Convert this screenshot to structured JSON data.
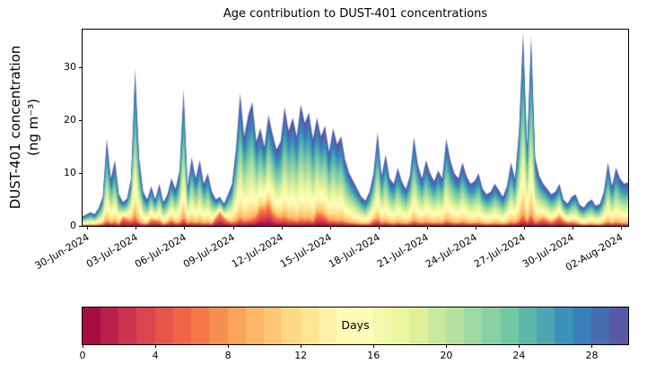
{
  "figure": {
    "title": "Age contribution to DUST-401 concentrations",
    "ylabel_line1": "DUST-401 concentration",
    "ylabel_line2": "(ng m⁻³)"
  },
  "chart_data": {
    "type": "area",
    "stacking": "age-stacked-by-color",
    "title": "Age contribution to DUST-401 concentrations",
    "xlabel": "",
    "ylabel": "DUST-401 concentration (ng m⁻³)",
    "ylim": [
      0,
      37.2
    ],
    "xlim_days": [
      -0.3,
      33.45
    ],
    "grid": false,
    "x_tick_days": [
      0,
      3,
      6,
      9,
      12,
      15,
      18,
      21,
      24,
      27,
      30,
      33
    ],
    "x_ticklabels": [
      "30-Jun-2024",
      "03-Jul-2024",
      "06-Jul-2024",
      "09-Jul-2024",
      "12-Jul-2024",
      "15-Jul-2024",
      "18-Jul-2024",
      "21-Jul-2024",
      "24-Jul-2024",
      "27-Jul-2024",
      "30-Jul-2024",
      "02-Aug-2024"
    ],
    "y_ticks": [
      0,
      10,
      20,
      30
    ],
    "time_start_day": -0.3,
    "time_step_days": 0.25,
    "total_concentration": [
      1.8,
      2.2,
      2.6,
      2.2,
      3.4,
      5.5,
      16.5,
      9.0,
      12.5,
      6.0,
      4.5,
      5.2,
      9.0,
      29.8,
      13.0,
      6.5,
      5.0,
      7.5,
      5.0,
      8.0,
      4.5,
      6.0,
      9.0,
      7.0,
      10.5,
      25.8,
      7.5,
      13.0,
      9.0,
      12.5,
      8.0,
      10.0,
      6.5,
      5.0,
      5.5,
      4.2,
      6.0,
      8.0,
      15.0,
      25.2,
      17.0,
      21.0,
      23.5,
      16.0,
      18.5,
      15.0,
      21.0,
      17.5,
      14.5,
      16.0,
      22.5,
      18.0,
      20.5,
      17.0,
      23.0,
      19.5,
      21.5,
      16.5,
      20.5,
      17.0,
      19.0,
      14.0,
      18.5,
      15.5,
      17.0,
      12.5,
      10.0,
      8.5,
      7.0,
      5.5,
      4.8,
      6.5,
      10.0,
      17.8,
      9.5,
      13.5,
      9.0,
      8.0,
      11.0,
      8.5,
      7.0,
      9.5,
      16.8,
      11.5,
      9.0,
      12.5,
      10.0,
      8.5,
      10.5,
      9.0,
      16.5,
      12.5,
      10.0,
      9.0,
      12.0,
      9.5,
      8.0,
      8.5,
      10.0,
      7.0,
      6.0,
      6.5,
      8.0,
      6.8,
      5.5,
      7.5,
      12.0,
      9.0,
      18.0,
      36.8,
      15.0,
      36.0,
      13.0,
      9.5,
      8.0,
      7.0,
      6.0,
      6.5,
      8.0,
      5.0,
      4.2,
      5.5,
      6.0,
      4.0,
      3.5,
      4.5,
      5.0,
      3.8,
      4.2,
      6.5,
      12.0,
      7.5,
      11.0,
      9.0,
      8.0,
      8.3
    ],
    "young_fraction": [
      0.06,
      0.06,
      0.06,
      0.06,
      0.06,
      0.06,
      0.06,
      0.06,
      0.06,
      0.06,
      0.35,
      0.25,
      0.12,
      0.06,
      0.06,
      0.06,
      0.08,
      0.15,
      0.2,
      0.12,
      0.08,
      0.1,
      0.12,
      0.08,
      0.06,
      0.06,
      0.08,
      0.06,
      0.06,
      0.06,
      0.06,
      0.06,
      0.06,
      0.3,
      0.45,
      0.35,
      0.15,
      0.08,
      0.06,
      0.06,
      0.06,
      0.06,
      0.06,
      0.12,
      0.18,
      0.22,
      0.2,
      0.15,
      0.12,
      0.1,
      0.08,
      0.07,
      0.06,
      0.06,
      0.06,
      0.06,
      0.06,
      0.06,
      0.12,
      0.15,
      0.1,
      0.08,
      0.06,
      0.06,
      0.06,
      0.06,
      0.06,
      0.06,
      0.06,
      0.06,
      0.06,
      0.06,
      0.1,
      0.08,
      0.06,
      0.06,
      0.06,
      0.06,
      0.06,
      0.06,
      0.06,
      0.06,
      0.06,
      0.06,
      0.06,
      0.06,
      0.06,
      0.06,
      0.06,
      0.06,
      0.06,
      0.06,
      0.06,
      0.06,
      0.06,
      0.06,
      0.06,
      0.06,
      0.06,
      0.06,
      0.06,
      0.06,
      0.06,
      0.06,
      0.06,
      0.06,
      0.06,
      0.06,
      0.06,
      0.06,
      0.06,
      0.06,
      0.06,
      0.12,
      0.18,
      0.15,
      0.12,
      0.18,
      0.22,
      0.2,
      0.15,
      0.12,
      0.1,
      0.08,
      0.06,
      0.06,
      0.06,
      0.06,
      0.06,
      0.06,
      0.06,
      0.06,
      0.06,
      0.06,
      0.06,
      0.06
    ],
    "age_model": {
      "young_age_max": 8,
      "age_max": 30,
      "upper_exponent": 0.7
    },
    "colorbar": {
      "label": "Days",
      "vmin": 0,
      "vmax": 30,
      "ticks": [
        0,
        4,
        8,
        12,
        16,
        20,
        24,
        28
      ],
      "n_bins": 30,
      "colormap_name": "Spectral",
      "colormap_anchors": [
        "#9e0142",
        "#d53e4f",
        "#f46d43",
        "#fdae61",
        "#fee08b",
        "#ffffbf",
        "#e6f598",
        "#abdda4",
        "#66c2a5",
        "#3288bd",
        "#5e4fa2"
      ]
    }
  }
}
